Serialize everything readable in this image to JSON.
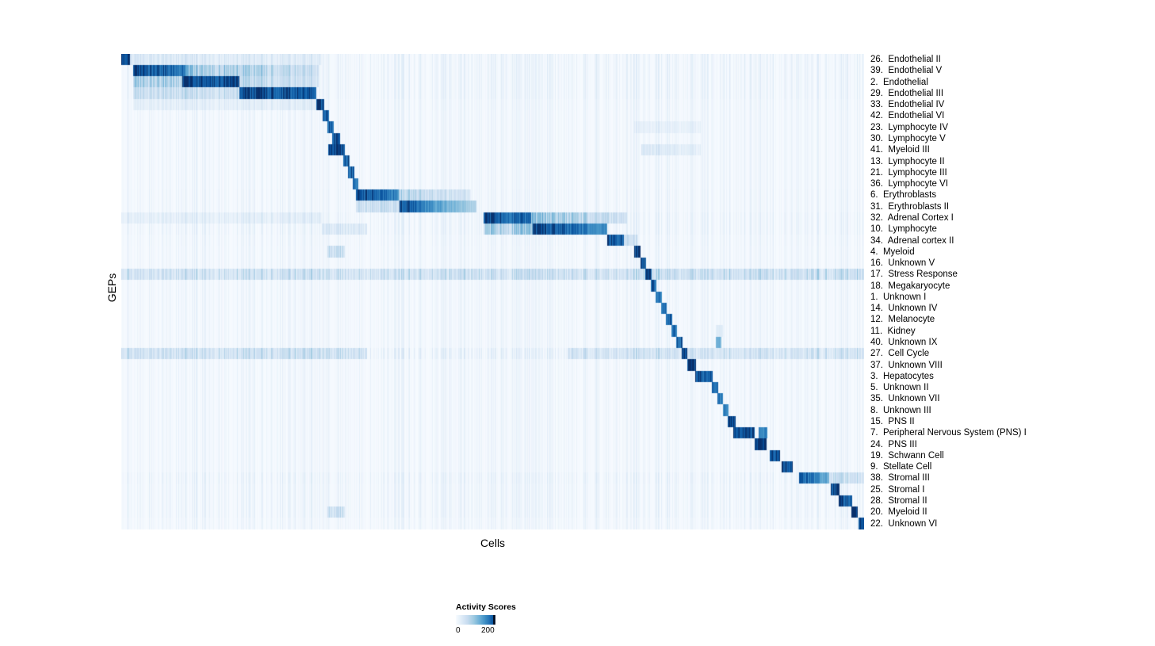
{
  "figure": {
    "xlabel": "Cells",
    "ylabel": "GEPs"
  },
  "legend": {
    "title": "Activity Scores",
    "min_label": "0",
    "max_label": "200"
  },
  "chart_data": {
    "type": "heatmap",
    "title": "",
    "xlabel": "Cells",
    "ylabel": "GEPs",
    "colorbar": {
      "title": "Activity Scores",
      "min": 0,
      "max": 200
    },
    "colormap": [
      [
        0,
        "#f8fbff"
      ],
      [
        30,
        "#deebf7"
      ],
      [
        60,
        "#c6dbef"
      ],
      [
        90,
        "#9ecae1"
      ],
      [
        120,
        "#6baed6"
      ],
      [
        145,
        "#4292c6"
      ],
      [
        170,
        "#2171b5"
      ],
      [
        190,
        "#08519c"
      ],
      [
        200,
        "#08306b"
      ]
    ],
    "n_rows": 42,
    "rows": [
      {
        "label": "26.  Endothelial II",
        "n": 1.4,
        "blocks": [
          {
            "s": 0.0,
            "e": 0.011,
            "v0": 200,
            "v1": 200
          }
        ],
        "regions": [
          {
            "s": 0.011,
            "e": 0.27,
            "v0": 28,
            "v1": 15
          }
        ]
      },
      {
        "label": "39.  Endothelial V",
        "n": 1.4,
        "blocks": [
          {
            "s": 0.016,
            "e": 0.085,
            "v0": 200,
            "v1": 170
          }
        ],
        "regions": [
          {
            "s": 0.085,
            "e": 0.265,
            "v0": 90,
            "v1": 35
          }
        ]
      },
      {
        "label": "2.  Endothelial",
        "n": 1.4,
        "blocks": [
          {
            "s": 0.082,
            "e": 0.158,
            "v0": 200,
            "v1": 200
          }
        ],
        "regions": [
          {
            "s": 0.016,
            "e": 0.082,
            "v0": 70,
            "v1": 70
          },
          {
            "s": 0.158,
            "e": 0.265,
            "v0": 55,
            "v1": 30
          }
        ]
      },
      {
        "label": "29.  Endothelial III",
        "n": 1.4,
        "blocks": [
          {
            "s": 0.158,
            "e": 0.262,
            "v0": 200,
            "v1": 180
          }
        ],
        "regions": [
          {
            "s": 0.016,
            "e": 0.158,
            "v0": 45,
            "v1": 45
          }
        ]
      },
      {
        "label": "33.  Endothelial IV",
        "n": 1.1,
        "blocks": [
          {
            "s": 0.262,
            "e": 0.273,
            "v0": 200,
            "v1": 200
          }
        ],
        "regions": [
          {
            "s": 0.016,
            "e": 0.262,
            "v0": 16,
            "v1": 16
          }
        ]
      },
      {
        "label": "42.  Endothelial VI",
        "n": 1.0,
        "blocks": [
          {
            "s": 0.271,
            "e": 0.279,
            "v0": 190,
            "v1": 190
          }
        ],
        "regions": []
      },
      {
        "label": "23.  Lymphocyte IV",
        "n": 1.0,
        "blocks": [
          {
            "s": 0.277,
            "e": 0.285,
            "v0": 180,
            "v1": 180
          }
        ],
        "regions": [
          {
            "s": 0.69,
            "e": 0.78,
            "v0": 12,
            "v1": 12
          }
        ]
      },
      {
        "label": "30.  Lymphocyte V",
        "n": 1.0,
        "blocks": [
          {
            "s": 0.283,
            "e": 0.294,
            "v0": 190,
            "v1": 190
          }
        ],
        "regions": []
      },
      {
        "label": "41.  Myeloid III",
        "n": 1.0,
        "blocks": [
          {
            "s": 0.278,
            "e": 0.3,
            "v0": 200,
            "v1": 200
          }
        ],
        "regions": [
          {
            "s": 0.7,
            "e": 0.78,
            "v0": 25,
            "v1": 14
          }
        ]
      },
      {
        "label": "13.  Lymphocyte II",
        "n": 1.0,
        "blocks": [
          {
            "s": 0.298,
            "e": 0.307,
            "v0": 190,
            "v1": 190
          }
        ],
        "regions": []
      },
      {
        "label": "21.  Lymphocyte III",
        "n": 1.0,
        "blocks": [
          {
            "s": 0.305,
            "e": 0.313,
            "v0": 180,
            "v1": 180
          }
        ],
        "regions": []
      },
      {
        "label": "36.  Lymphocyte VI",
        "n": 1.0,
        "blocks": [
          {
            "s": 0.311,
            "e": 0.319,
            "v0": 170,
            "v1": 170
          }
        ],
        "regions": []
      },
      {
        "label": "6.  Erythroblasts",
        "n": 1.1,
        "blocks": [
          {
            "s": 0.315,
            "e": 0.373,
            "v0": 200,
            "v1": 160
          }
        ],
        "regions": [
          {
            "s": 0.373,
            "e": 0.47,
            "v0": 60,
            "v1": 25
          }
        ]
      },
      {
        "label": "31.  Erythroblasts II",
        "n": 1.1,
        "blocks": [
          {
            "s": 0.374,
            "e": 0.478,
            "v0": 200,
            "v1": 70
          }
        ],
        "regions": [
          {
            "s": 0.315,
            "e": 0.374,
            "v0": 45,
            "v1": 45
          }
        ]
      },
      {
        "label": "32.  Adrenal Cortex I",
        "n": 1.4,
        "blocks": [
          {
            "s": 0.487,
            "e": 0.551,
            "v0": 200,
            "v1": 170
          }
        ],
        "regions": [
          {
            "s": 0.551,
            "e": 0.68,
            "v0": 80,
            "v1": 40
          },
          {
            "s": 0.0,
            "e": 0.27,
            "v0": 14,
            "v1": 14
          }
        ]
      },
      {
        "label": "10.  Lymphocyte",
        "n": 1.4,
        "blocks": [
          {
            "s": 0.553,
            "e": 0.654,
            "v0": 200,
            "v1": 150
          }
        ],
        "regions": [
          {
            "s": 0.487,
            "e": 0.553,
            "v0": 70,
            "v1": 70
          },
          {
            "s": 0.27,
            "e": 0.33,
            "v0": 25,
            "v1": 25
          }
        ]
      },
      {
        "label": "34.  Adrenal cortex II",
        "n": 1.1,
        "blocks": [
          {
            "s": 0.654,
            "e": 0.676,
            "v0": 200,
            "v1": 180
          }
        ],
        "regions": [
          {
            "s": 0.676,
            "e": 0.695,
            "v0": 50,
            "v1": 30
          }
        ]
      },
      {
        "label": "4.  Myeloid",
        "n": 1.0,
        "blocks": [
          {
            "s": 0.69,
            "e": 0.699,
            "v0": 200,
            "v1": 200
          }
        ],
        "regions": [
          {
            "s": 0.277,
            "e": 0.3,
            "v0": 45,
            "v1": 45
          }
        ]
      },
      {
        "label": "16.  Unknown V",
        "n": 1.0,
        "blocks": [
          {
            "s": 0.698,
            "e": 0.706,
            "v0": 180,
            "v1": 180
          }
        ],
        "regions": []
      },
      {
        "label": "17.  Stress Response",
        "n": 2.4,
        "blocks": [
          {
            "s": 0.705,
            "e": 0.713,
            "v0": 200,
            "v1": 200
          }
        ],
        "regions": [
          {
            "s": 0.0,
            "e": 0.705,
            "v0": 30,
            "v1": 30
          },
          {
            "s": 0.713,
            "e": 1.0,
            "v0": 35,
            "v1": 35
          }
        ]
      },
      {
        "label": "18.  Megakaryocyte",
        "n": 1.0,
        "blocks": [
          {
            "s": 0.712,
            "e": 0.72,
            "v0": 180,
            "v1": 180
          }
        ],
        "regions": []
      },
      {
        "label": "1.  Unknown I",
        "n": 1.0,
        "blocks": [
          {
            "s": 0.719,
            "e": 0.727,
            "v0": 160,
            "v1": 160
          }
        ],
        "regions": []
      },
      {
        "label": "14.  Unknown IV",
        "n": 1.0,
        "blocks": [
          {
            "s": 0.726,
            "e": 0.734,
            "v0": 170,
            "v1": 170
          }
        ],
        "regions": []
      },
      {
        "label": "12.  Melanocyte",
        "n": 1.0,
        "blocks": [
          {
            "s": 0.733,
            "e": 0.741,
            "v0": 180,
            "v1": 180
          }
        ],
        "regions": []
      },
      {
        "label": "11.  Kidney",
        "n": 1.0,
        "blocks": [
          {
            "s": 0.74,
            "e": 0.748,
            "v0": 170,
            "v1": 170
          }
        ],
        "regions": [
          {
            "s": 0.8,
            "e": 0.81,
            "v0": 25,
            "v1": 25
          }
        ]
      },
      {
        "label": "40.  Unknown IX",
        "n": 1.0,
        "blocks": [
          {
            "s": 0.747,
            "e": 0.755,
            "v0": 180,
            "v1": 180
          },
          {
            "s": 0.8,
            "e": 0.807,
            "v0": 120,
            "v1": 120
          }
        ],
        "regions": []
      },
      {
        "label": "27.  Cell Cycle",
        "n": 2.0,
        "blocks": [
          {
            "s": 0.754,
            "e": 0.762,
            "v0": 200,
            "v1": 200
          }
        ],
        "regions": [
          {
            "s": 0.0,
            "e": 0.33,
            "v0": 35,
            "v1": 35
          },
          {
            "s": 0.6,
            "e": 1.0,
            "v0": 28,
            "v1": 28
          }
        ]
      },
      {
        "label": "37.  Unknown VIII",
        "n": 1.0,
        "blocks": [
          {
            "s": 0.761,
            "e": 0.773,
            "v0": 200,
            "v1": 200
          }
        ],
        "regions": []
      },
      {
        "label": "3.  Hepatocytes",
        "n": 1.0,
        "blocks": [
          {
            "s": 0.772,
            "e": 0.796,
            "v0": 200,
            "v1": 180
          }
        ],
        "regions": []
      },
      {
        "label": "5.  Unknown II",
        "n": 1.0,
        "blocks": [
          {
            "s": 0.795,
            "e": 0.803,
            "v0": 180,
            "v1": 180
          }
        ],
        "regions": []
      },
      {
        "label": "35.  Unknown VII",
        "n": 1.0,
        "blocks": [
          {
            "s": 0.802,
            "e": 0.81,
            "v0": 170,
            "v1": 170
          }
        ],
        "regions": []
      },
      {
        "label": "8.  Unknown III",
        "n": 1.0,
        "blocks": [
          {
            "s": 0.809,
            "e": 0.817,
            "v0": 160,
            "v1": 160
          }
        ],
        "regions": []
      },
      {
        "label": "15.  PNS II",
        "n": 1.0,
        "blocks": [
          {
            "s": 0.816,
            "e": 0.827,
            "v0": 200,
            "v1": 200
          }
        ],
        "regions": []
      },
      {
        "label": "7.  Peripheral Nervous System (PNS) I",
        "n": 1.0,
        "blocks": [
          {
            "s": 0.823,
            "e": 0.852,
            "v0": 200,
            "v1": 200
          },
          {
            "s": 0.857,
            "e": 0.869,
            "v0": 150,
            "v1": 150
          }
        ],
        "regions": []
      },
      {
        "label": "24.  PNS III",
        "n": 1.0,
        "blocks": [
          {
            "s": 0.852,
            "e": 0.868,
            "v0": 200,
            "v1": 200
          }
        ],
        "regions": []
      },
      {
        "label": "19.  Schwann Cell",
        "n": 1.0,
        "blocks": [
          {
            "s": 0.872,
            "e": 0.886,
            "v0": 200,
            "v1": 200
          }
        ],
        "regions": []
      },
      {
        "label": "9.  Stellate Cell",
        "n": 1.0,
        "blocks": [
          {
            "s": 0.888,
            "e": 0.903,
            "v0": 200,
            "v1": 200
          }
        ],
        "regions": []
      },
      {
        "label": "38.  Stromal III",
        "n": 1.5,
        "blocks": [
          {
            "s": 0.912,
            "e": 0.953,
            "v0": 200,
            "v1": 120
          }
        ],
        "regions": [
          {
            "s": 0.953,
            "e": 1.0,
            "v0": 50,
            "v1": 30
          }
        ]
      },
      {
        "label": "25.  Stromal I",
        "n": 1.3,
        "blocks": [
          {
            "s": 0.955,
            "e": 0.966,
            "v0": 200,
            "v1": 200
          }
        ],
        "regions": []
      },
      {
        "label": "28.  Stromal II",
        "n": 1.3,
        "blocks": [
          {
            "s": 0.965,
            "e": 0.983,
            "v0": 200,
            "v1": 180
          }
        ],
        "regions": []
      },
      {
        "label": "20.  Myeloid II",
        "n": 1.3,
        "blocks": [
          {
            "s": 0.982,
            "e": 0.991,
            "v0": 200,
            "v1": 200
          }
        ],
        "regions": [
          {
            "s": 0.277,
            "e": 0.3,
            "v0": 40,
            "v1": 40
          }
        ]
      },
      {
        "label": "22.  Unknown VI",
        "n": 1.0,
        "blocks": [
          {
            "s": 0.992,
            "e": 1.0,
            "v0": 200,
            "v1": 200
          }
        ],
        "regions": []
      }
    ]
  }
}
